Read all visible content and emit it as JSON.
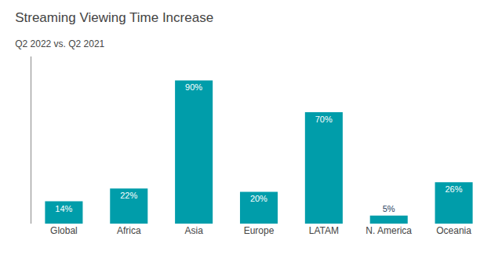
{
  "chart_data": {
    "type": "bar",
    "title": "Streaming Viewing Time Increase",
    "subtitle": "Q2 2022 vs. Q2 2021",
    "categories": [
      "Global",
      "Africa",
      "Asia",
      "Europe",
      "LATAM",
      "N. America",
      "Oceania"
    ],
    "values": [
      14,
      22,
      90,
      20,
      70,
      5,
      26
    ],
    "value_labels": [
      "14%",
      "22%",
      "90%",
      "20%",
      "70%",
      "5%",
      "26%"
    ],
    "data_labels": true,
    "color": "#009DAA",
    "ylim": [
      0,
      105
    ],
    "grid": false,
    "tick_labels": "x"
  }
}
